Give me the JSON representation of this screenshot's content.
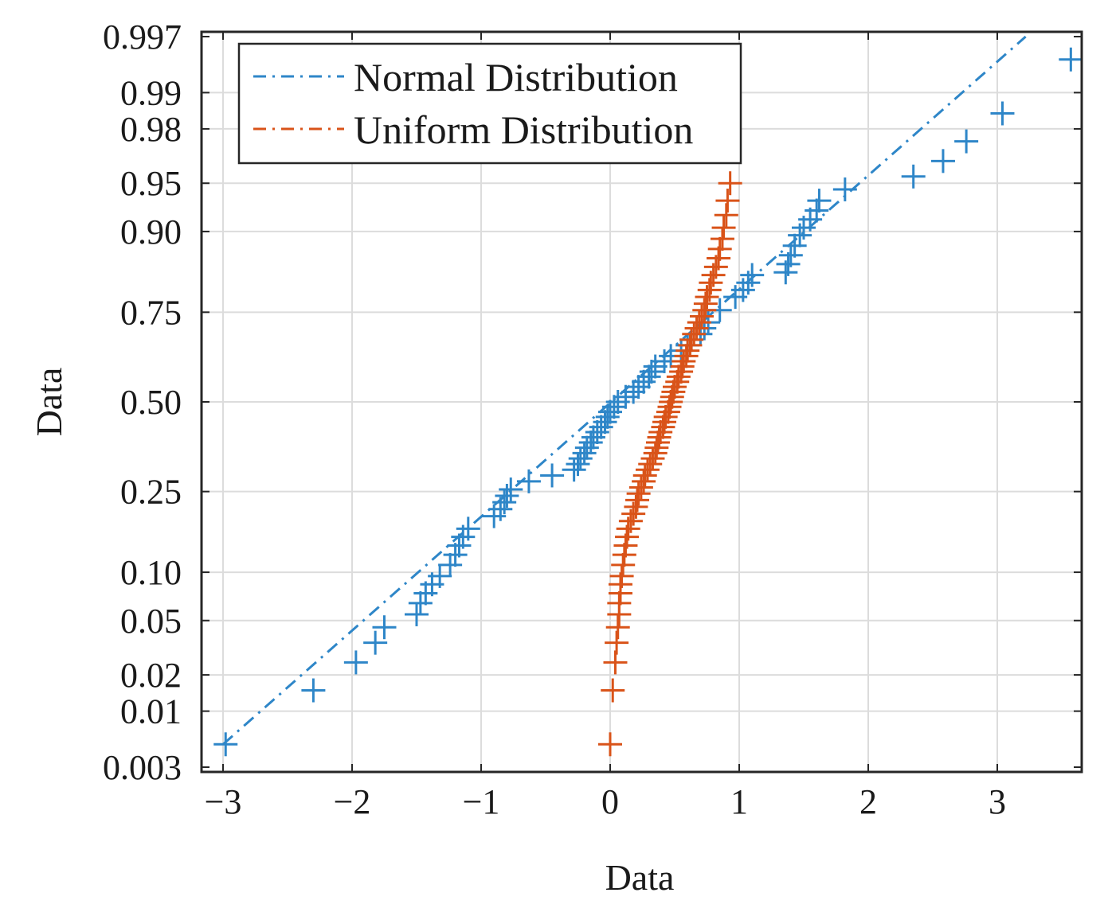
{
  "chart_data": {
    "type": "scatter",
    "title": "",
    "xlabel": "Data",
    "ylabel": "Data",
    "xlim": [
      -3.1,
      3.7
    ],
    "ylim": [
      0.003,
      0.997
    ],
    "y_scale": "normal probability",
    "grid": true,
    "legend_position": "top-left",
    "xticks": [
      -3,
      -2,
      -1,
      0,
      1,
      2,
      3
    ],
    "xtick_labels": [
      "−3",
      "−2",
      "−1",
      "0",
      "1",
      "2",
      "3"
    ],
    "yticks": [
      0.003,
      0.01,
      0.02,
      0.05,
      0.1,
      0.25,
      0.5,
      0.75,
      0.9,
      0.95,
      0.98,
      0.99,
      0.997
    ],
    "ytick_labels": [
      "0.003",
      "0.01",
      "0.02",
      "0.05",
      "0.10",
      "0.25",
      "0.50",
      "0.75",
      "0.90",
      "0.95",
      "0.98",
      "0.99",
      "0.997"
    ],
    "series": [
      {
        "name": "Normal Distribution",
        "color": "#2E86C8",
        "marker": "plus",
        "fit_line": {
          "style": "dash-dot",
          "x": [
            -3.0,
            3.22
          ],
          "p": [
            0.005,
            0.997
          ]
        },
        "points": [
          {
            "x": -2.98,
            "p": 0.005
          },
          {
            "x": -2.3,
            "p": 0.015
          },
          {
            "x": -1.97,
            "p": 0.025
          },
          {
            "x": -1.82,
            "p": 0.035
          },
          {
            "x": -1.75,
            "p": 0.045
          },
          {
            "x": -1.5,
            "p": 0.055
          },
          {
            "x": -1.47,
            "p": 0.065
          },
          {
            "x": -1.43,
            "p": 0.075
          },
          {
            "x": -1.38,
            "p": 0.085
          },
          {
            "x": -1.32,
            "p": 0.095
          },
          {
            "x": -1.24,
            "p": 0.11
          },
          {
            "x": -1.2,
            "p": 0.125
          },
          {
            "x": -1.17,
            "p": 0.14
          },
          {
            "x": -1.14,
            "p": 0.155
          },
          {
            "x": -1.1,
            "p": 0.17
          },
          {
            "x": -0.9,
            "p": 0.195
          },
          {
            "x": -0.85,
            "p": 0.21
          },
          {
            "x": -0.82,
            "p": 0.225
          },
          {
            "x": -0.8,
            "p": 0.24
          },
          {
            "x": -0.77,
            "p": 0.255
          },
          {
            "x": -0.63,
            "p": 0.275
          },
          {
            "x": -0.45,
            "p": 0.29
          },
          {
            "x": -0.28,
            "p": 0.305
          },
          {
            "x": -0.25,
            "p": 0.32
          },
          {
            "x": -0.23,
            "p": 0.335
          },
          {
            "x": -0.2,
            "p": 0.35
          },
          {
            "x": -0.18,
            "p": 0.365
          },
          {
            "x": -0.15,
            "p": 0.38
          },
          {
            "x": -0.13,
            "p": 0.395
          },
          {
            "x": -0.1,
            "p": 0.41
          },
          {
            "x": -0.07,
            "p": 0.425
          },
          {
            "x": -0.04,
            "p": 0.44
          },
          {
            "x": -0.02,
            "p": 0.455
          },
          {
            "x": 0.0,
            "p": 0.47
          },
          {
            "x": 0.03,
            "p": 0.485
          },
          {
            "x": 0.06,
            "p": 0.5
          },
          {
            "x": 0.12,
            "p": 0.515
          },
          {
            "x": 0.18,
            "p": 0.53
          },
          {
            "x": 0.22,
            "p": 0.545
          },
          {
            "x": 0.26,
            "p": 0.56
          },
          {
            "x": 0.3,
            "p": 0.575
          },
          {
            "x": 0.32,
            "p": 0.59
          },
          {
            "x": 0.35,
            "p": 0.605
          },
          {
            "x": 0.42,
            "p": 0.62
          },
          {
            "x": 0.47,
            "p": 0.635
          },
          {
            "x": 0.55,
            "p": 0.65
          },
          {
            "x": 0.6,
            "p": 0.665
          },
          {
            "x": 0.63,
            "p": 0.68
          },
          {
            "x": 0.7,
            "p": 0.695
          },
          {
            "x": 0.73,
            "p": 0.71
          },
          {
            "x": 0.76,
            "p": 0.725
          },
          {
            "x": 0.85,
            "p": 0.755
          },
          {
            "x": 0.97,
            "p": 0.785
          },
          {
            "x": 1.03,
            "p": 0.8
          },
          {
            "x": 1.07,
            "p": 0.815
          },
          {
            "x": 1.1,
            "p": 0.83
          },
          {
            "x": 1.36,
            "p": 0.835
          },
          {
            "x": 1.38,
            "p": 0.85
          },
          {
            "x": 1.4,
            "p": 0.865
          },
          {
            "x": 1.43,
            "p": 0.88
          },
          {
            "x": 1.47,
            "p": 0.895
          },
          {
            "x": 1.5,
            "p": 0.905
          },
          {
            "x": 1.55,
            "p": 0.915
          },
          {
            "x": 1.6,
            "p": 0.925
          },
          {
            "x": 1.62,
            "p": 0.935
          },
          {
            "x": 1.82,
            "p": 0.945
          },
          {
            "x": 2.35,
            "p": 0.955
          },
          {
            "x": 2.58,
            "p": 0.965
          },
          {
            "x": 2.76,
            "p": 0.975
          },
          {
            "x": 3.04,
            "p": 0.985
          },
          {
            "x": 3.57,
            "p": 0.995
          }
        ]
      },
      {
        "name": "Uniform Distribution",
        "color": "#D95319",
        "marker": "plus",
        "fit_line": {
          "style": "dash-dot",
          "x": [
            0.5,
            0.5
          ],
          "p": [
            0.5,
            0.5
          ]
        },
        "points": [
          {
            "x": 0.0,
            "p": 0.005
          },
          {
            "x": 0.02,
            "p": 0.015
          },
          {
            "x": 0.04,
            "p": 0.025
          },
          {
            "x": 0.05,
            "p": 0.035
          },
          {
            "x": 0.06,
            "p": 0.045
          },
          {
            "x": 0.07,
            "p": 0.055
          },
          {
            "x": 0.07,
            "p": 0.065
          },
          {
            "x": 0.08,
            "p": 0.075
          },
          {
            "x": 0.08,
            "p": 0.085
          },
          {
            "x": 0.09,
            "p": 0.095
          },
          {
            "x": 0.1,
            "p": 0.11
          },
          {
            "x": 0.11,
            "p": 0.125
          },
          {
            "x": 0.12,
            "p": 0.14
          },
          {
            "x": 0.13,
            "p": 0.155
          },
          {
            "x": 0.14,
            "p": 0.17
          },
          {
            "x": 0.16,
            "p": 0.185
          },
          {
            "x": 0.18,
            "p": 0.2
          },
          {
            "x": 0.2,
            "p": 0.215
          },
          {
            "x": 0.21,
            "p": 0.23
          },
          {
            "x": 0.22,
            "p": 0.245
          },
          {
            "x": 0.24,
            "p": 0.26
          },
          {
            "x": 0.26,
            "p": 0.275
          },
          {
            "x": 0.27,
            "p": 0.29
          },
          {
            "x": 0.29,
            "p": 0.305
          },
          {
            "x": 0.31,
            "p": 0.32
          },
          {
            "x": 0.33,
            "p": 0.335
          },
          {
            "x": 0.35,
            "p": 0.35
          },
          {
            "x": 0.36,
            "p": 0.365
          },
          {
            "x": 0.37,
            "p": 0.38
          },
          {
            "x": 0.38,
            "p": 0.395
          },
          {
            "x": 0.39,
            "p": 0.41
          },
          {
            "x": 0.41,
            "p": 0.425
          },
          {
            "x": 0.42,
            "p": 0.44
          },
          {
            "x": 0.43,
            "p": 0.455
          },
          {
            "x": 0.45,
            "p": 0.47
          },
          {
            "x": 0.46,
            "p": 0.485
          },
          {
            "x": 0.47,
            "p": 0.5
          },
          {
            "x": 0.48,
            "p": 0.515
          },
          {
            "x": 0.49,
            "p": 0.53
          },
          {
            "x": 0.5,
            "p": 0.545
          },
          {
            "x": 0.52,
            "p": 0.56
          },
          {
            "x": 0.53,
            "p": 0.575
          },
          {
            "x": 0.55,
            "p": 0.59
          },
          {
            "x": 0.56,
            "p": 0.605
          },
          {
            "x": 0.57,
            "p": 0.62
          },
          {
            "x": 0.59,
            "p": 0.635
          },
          {
            "x": 0.6,
            "p": 0.65
          },
          {
            "x": 0.62,
            "p": 0.665
          },
          {
            "x": 0.63,
            "p": 0.68
          },
          {
            "x": 0.65,
            "p": 0.695
          },
          {
            "x": 0.67,
            "p": 0.71
          },
          {
            "x": 0.69,
            "p": 0.725
          },
          {
            "x": 0.71,
            "p": 0.74
          },
          {
            "x": 0.73,
            "p": 0.755
          },
          {
            "x": 0.74,
            "p": 0.77
          },
          {
            "x": 0.75,
            "p": 0.785
          },
          {
            "x": 0.77,
            "p": 0.8
          },
          {
            "x": 0.78,
            "p": 0.815
          },
          {
            "x": 0.8,
            "p": 0.83
          },
          {
            "x": 0.82,
            "p": 0.845
          },
          {
            "x": 0.84,
            "p": 0.86
          },
          {
            "x": 0.85,
            "p": 0.875
          },
          {
            "x": 0.87,
            "p": 0.89
          },
          {
            "x": 0.88,
            "p": 0.905
          },
          {
            "x": 0.9,
            "p": 0.92
          },
          {
            "x": 0.91,
            "p": 0.935
          },
          {
            "x": 0.93,
            "p": 0.95
          }
        ]
      }
    ]
  }
}
